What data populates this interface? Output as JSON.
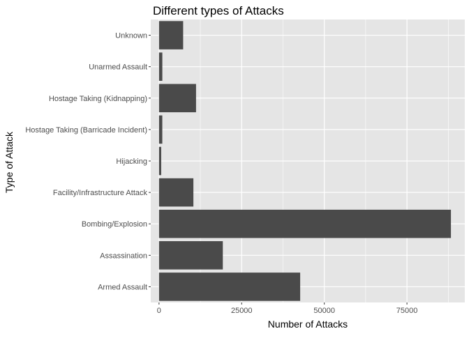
{
  "chart_data": {
    "type": "bar",
    "orientation": "horizontal",
    "title": "Different types of Attacks",
    "xlabel": "Number of Attacks",
    "ylabel": "Type of Attack",
    "categories": [
      "Armed Assault",
      "Assassination",
      "Bombing/Explosion",
      "Facility/Infrastructure Attack",
      "Hijacking",
      "Hostage Taking (Barricade Incident)",
      "Hostage Taking (Kidnapping)",
      "Unarmed Assault",
      "Unknown"
    ],
    "values": [
      42700,
      19300,
      88300,
      10400,
      660,
      990,
      11200,
      1000,
      7300
    ],
    "xlim": [
      -2500,
      92500
    ],
    "xticks": [
      0,
      25000,
      50000,
      75000
    ],
    "xtick_labels": [
      "0",
      "25000",
      "50000",
      "75000"
    ],
    "grid": true,
    "colors": {
      "bar": "#4a4a4a",
      "panel": "#e5e5e5",
      "grid": "#ffffff"
    }
  }
}
